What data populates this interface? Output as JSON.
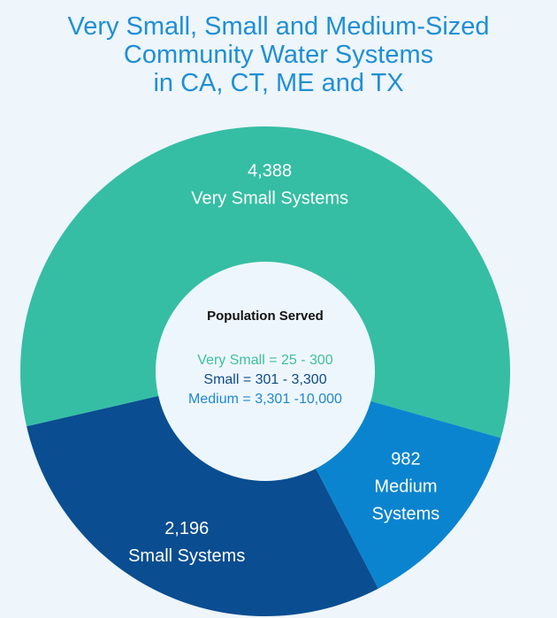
{
  "title_lines": [
    "Very Small, Small and Medium-Sized",
    "Community Water Systems",
    "in CA, CT, ME and TX"
  ],
  "center": {
    "heading": "Population Served",
    "lines": [
      {
        "text": "Very Small = 25 - 300",
        "color": "#3dbf9f"
      },
      {
        "text": "Small = 301 - 3,300",
        "color": "#0e4c8c"
      },
      {
        "text": "Medium = 3,301 -10,000",
        "color": "#1e88d2"
      }
    ]
  },
  "chart_data": {
    "type": "pie",
    "title": "Very Small, Small and Medium-Sized Community Water Systems in CA, CT, ME and TX",
    "categories": [
      "Very Small Systems",
      "Small Systems",
      "Medium Systems"
    ],
    "values": [
      4388,
      2196,
      982
    ],
    "colors": [
      "#35bea4",
      "#0a4d91",
      "#0b84cf"
    ],
    "labels": [
      [
        "4,388",
        "Very Small Systems"
      ],
      [
        "2,196",
        "Small Systems"
      ],
      [
        "982",
        "Medium",
        "Systems"
      ]
    ],
    "donut": true
  },
  "colors": {
    "title": "#1f8fd6",
    "background": "#eef5fb",
    "hole": "#eef6fd"
  }
}
